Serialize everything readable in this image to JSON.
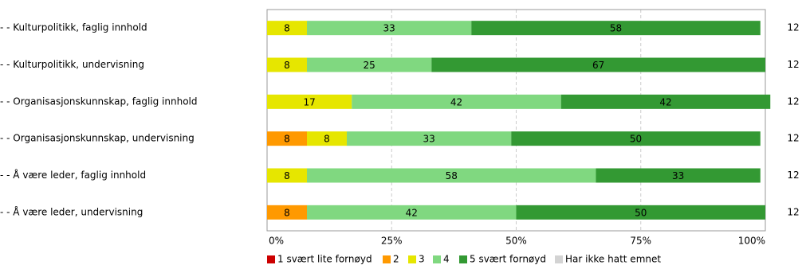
{
  "chart_data": {
    "type": "stacked-bar-horizontal",
    "categories": [
      "- - Kulturpolitikk, faglig innhold",
      "- - Kulturpolitikk, undervisning",
      "- - Organisasjonskunnskap, faglig innhold",
      "- - Organisasjonskunnskap, undervisning",
      "- - Å være leder, faglig innhold",
      "- - Å være leder, undervisning"
    ],
    "counts": [
      12,
      12,
      12,
      12,
      12,
      12
    ],
    "series": [
      {
        "name": "1 svært lite fornøyd",
        "color": "#cc0000",
        "values": [
          null,
          null,
          null,
          null,
          null,
          null
        ]
      },
      {
        "name": "2",
        "color": "#ff9900",
        "values": [
          null,
          null,
          null,
          8,
          null,
          8
        ]
      },
      {
        "name": "3",
        "color": "#e6e600",
        "values": [
          8,
          8,
          17,
          8,
          8,
          null
        ]
      },
      {
        "name": "4",
        "color": "#80d880",
        "values": [
          33,
          25,
          42,
          33,
          58,
          42
        ]
      },
      {
        "name": "5 svært fornøyd",
        "color": "#339933",
        "values": [
          58,
          67,
          42,
          50,
          33,
          50
        ]
      },
      {
        "name": "Har ikke hatt emnet",
        "color": "#d3d3d3",
        "values": [
          null,
          null,
          null,
          null,
          null,
          null
        ]
      }
    ],
    "xlim": [
      0,
      100
    ],
    "xticks": [
      {
        "value": 0,
        "label": "0%"
      },
      {
        "value": 25,
        "label": "25%"
      },
      {
        "value": 50,
        "label": "50%"
      },
      {
        "value": 75,
        "label": "75%"
      },
      {
        "value": 100,
        "label": "100%"
      }
    ],
    "grid": true
  }
}
